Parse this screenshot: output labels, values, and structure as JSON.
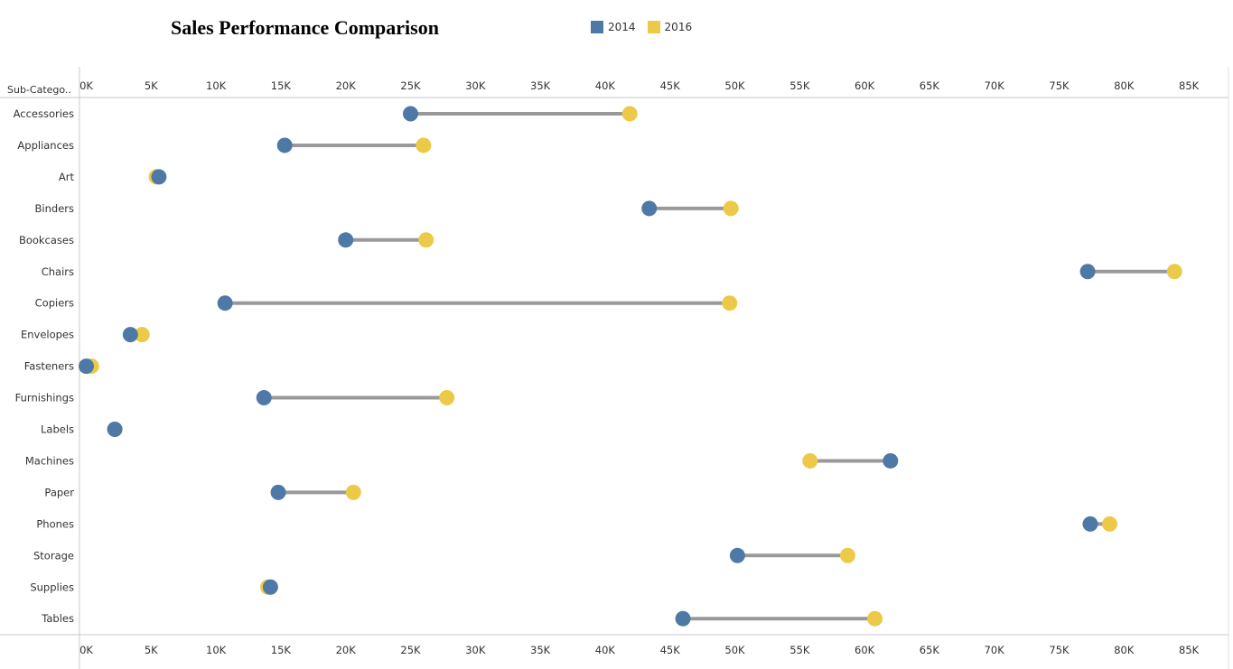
{
  "chart_data": {
    "type": "scatter",
    "subtype": "dumbbell",
    "title": "Sales Performance Comparison",
    "row_header": "Sub-Catego..",
    "xlim": [
      0,
      88000
    ],
    "x_ticks": [
      0,
      5000,
      10000,
      15000,
      20000,
      25000,
      30000,
      35000,
      40000,
      45000,
      50000,
      55000,
      60000,
      65000,
      70000,
      75000,
      80000,
      85000
    ],
    "x_tick_labels": [
      "0K",
      "5K",
      "10K",
      "15K",
      "20K",
      "25K",
      "30K",
      "35K",
      "40K",
      "45K",
      "50K",
      "55K",
      "60K",
      "65K",
      "70K",
      "75K",
      "80K",
      "85K"
    ],
    "legend_position": "top",
    "categories": [
      "Accessories",
      "Appliances",
      "Art",
      "Binders",
      "Bookcases",
      "Chairs",
      "Copiers",
      "Envelopes",
      "Fasteners",
      "Furnishings",
      "Labels",
      "Machines",
      "Paper",
      "Phones",
      "Storage",
      "Supplies",
      "Tables"
    ],
    "series": [
      {
        "name": "2014",
        "color": "#4e79a7",
        "values": [
          25000,
          15300,
          5600,
          43400,
          20000,
          77200,
          10700,
          3400,
          0,
          13700,
          2200,
          62000,
          14800,
          77400,
          50200,
          14200,
          46000
        ]
      },
      {
        "name": "2016",
        "color": "#edc948",
        "values": [
          41900,
          26000,
          5400,
          49700,
          26200,
          83900,
          49600,
          4300,
          400,
          27800,
          2200,
          55800,
          20600,
          78900,
          58700,
          14000,
          60800
        ]
      }
    ],
    "connector_color": "#999999",
    "axis_position": "top-and-bottom"
  }
}
